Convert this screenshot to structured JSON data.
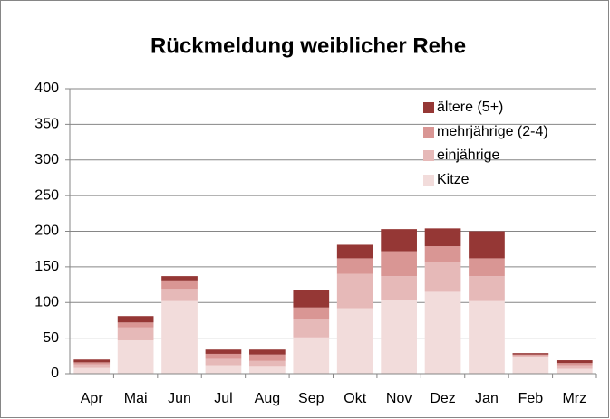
{
  "chart_data": {
    "type": "bar",
    "stacked": true,
    "title": "Rückmeldung weiblicher Rehe",
    "categories": [
      "Apr",
      "Mai",
      "Jun",
      "Jul",
      "Aug",
      "Sep",
      "Okt",
      "Nov",
      "Dez",
      "Jan",
      "Feb",
      "Mrz"
    ],
    "series": [
      {
        "name": "Kitze",
        "color": "#f2dcdb",
        "values": [
          8,
          47,
          102,
          12,
          11,
          51,
          92,
          104,
          115,
          102,
          24,
          7
        ]
      },
      {
        "name": "einjährige",
        "color": "#e6b9b8",
        "values": [
          5,
          18,
          17,
          9,
          7,
          26,
          48,
          33,
          42,
          35,
          2,
          5
        ]
      },
      {
        "name": "mehrjährige (2-4)",
        "color": "#d99694",
        "values": [
          3,
          7,
          12,
          7,
          9,
          16,
          22,
          35,
          22,
          25,
          1,
          3
        ]
      },
      {
        "name": "ältere (5+)",
        "color": "#953735",
        "values": [
          4,
          9,
          6,
          6,
          7,
          25,
          19,
          31,
          25,
          38,
          2,
          4
        ]
      }
    ],
    "ylim": [
      0,
      400
    ],
    "yticks": [
      0,
      50,
      100,
      150,
      200,
      250,
      300,
      350,
      400
    ],
    "grid": true,
    "legend": "top-right"
  }
}
